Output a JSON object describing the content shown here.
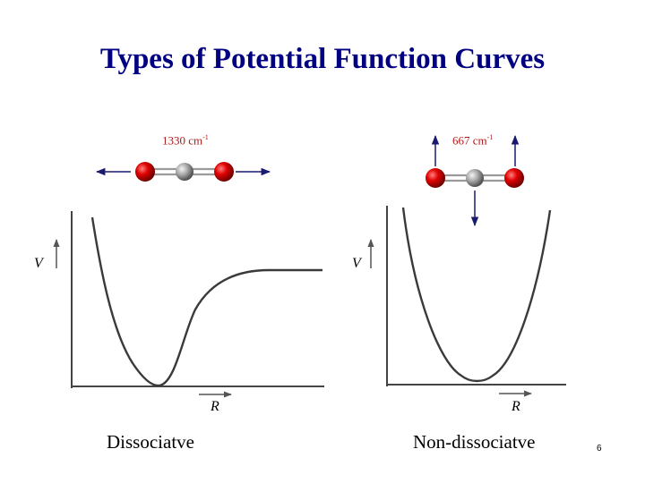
{
  "title": "Types of Potential Function Curves",
  "left": {
    "frequency_value": "1330 cm",
    "frequency_exp": "-1",
    "y_axis_label": "V",
    "x_axis_label": "R",
    "caption": "Dissociatve"
  },
  "right": {
    "frequency_value": "667 cm",
    "frequency_exp": "-1",
    "y_axis_label": "V",
    "x_axis_label": "R",
    "caption": "Non-dissociatve"
  },
  "page_number": "6",
  "colors": {
    "title": "#000080",
    "frequency_text": "#b01818",
    "arrow": "#1a1a6e",
    "oxygen_atom": "#e00000",
    "carbon_atom": "#a8a8a8"
  }
}
